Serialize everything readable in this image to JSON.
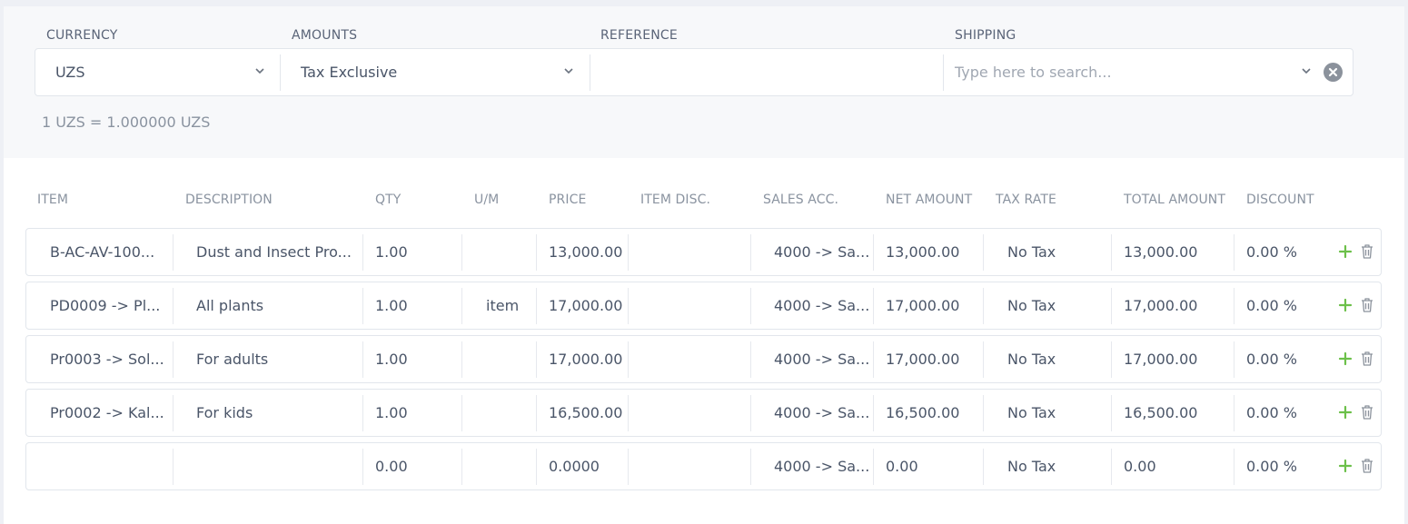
{
  "header": {
    "currency": {
      "label": "CURRENCY",
      "value": "UZS"
    },
    "amounts": {
      "label": "AMOUNTS",
      "value": "Tax Exclusive"
    },
    "reference": {
      "label": "REFERENCE",
      "value": ""
    },
    "shipping": {
      "label": "SHIPPING",
      "placeholder": "Type here to search..."
    },
    "exchange_rate": "1 UZS = 1.000000 UZS"
  },
  "columns": {
    "item": "ITEM",
    "description": "DESCRIPTION",
    "qty": "QTY",
    "um": "U/M",
    "price": "PRICE",
    "item_disc": "ITEM DISC.",
    "sales_acc": "SALES ACC.",
    "net_amount": "NET AMOUNT",
    "tax_rate": "TAX RATE",
    "total_amount": "TOTAL AMOUNT",
    "discount": "DISCOUNT"
  },
  "rows": [
    {
      "item": "B-AC-AV-100...",
      "description": "Dust and Insect Pro...",
      "qty": "1.00",
      "um": "",
      "price": "13,000.00",
      "item_disc": "",
      "sales_acc": "4000 -> Sa...",
      "net_amount": "13,000.00",
      "tax_rate": "No Tax",
      "total_amount": "13,000.00",
      "discount": "0.00 %"
    },
    {
      "item": "PD0009 -> Pl...",
      "description": "All plants",
      "qty": "1.00",
      "um": "item",
      "price": "17,000.00",
      "item_disc": "",
      "sales_acc": "4000 -> Sa...",
      "net_amount": "17,000.00",
      "tax_rate": "No Tax",
      "total_amount": "17,000.00",
      "discount": "0.00 %"
    },
    {
      "item": "Pr0003 -> Sol...",
      "description": "For adults",
      "qty": "1.00",
      "um": "",
      "price": "17,000.00",
      "item_disc": "",
      "sales_acc": "4000 -> Sa...",
      "net_amount": "17,000.00",
      "tax_rate": "No Tax",
      "total_amount": "17,000.00",
      "discount": "0.00 %"
    },
    {
      "item": "Pr0002 -> Kal...",
      "description": "For kids",
      "qty": "1.00",
      "um": "",
      "price": "16,500.00",
      "item_disc": "",
      "sales_acc": "4000 -> Sa...",
      "net_amount": "16,500.00",
      "tax_rate": "No Tax",
      "total_amount": "16,500.00",
      "discount": "0.00 %"
    },
    {
      "item": "",
      "description": "",
      "qty": "0.00",
      "um": "",
      "price": "0.0000",
      "item_disc": "",
      "sales_acc": "4000 -> Sa...",
      "net_amount": "0.00",
      "tax_rate": "No Tax",
      "total_amount": "0.00",
      "discount": "0.00 %"
    }
  ],
  "icons": {
    "add": "plus-icon",
    "delete": "trash-icon"
  },
  "colors": {
    "add_icon": "#6cc04a",
    "delete_icon": "#8b929c",
    "border": "#e2e6ec"
  }
}
